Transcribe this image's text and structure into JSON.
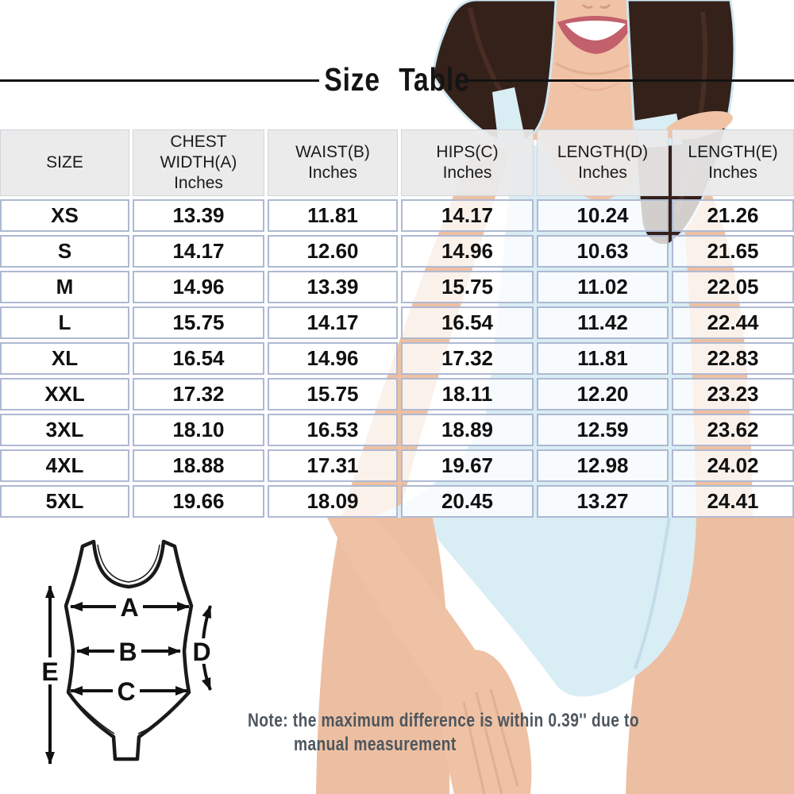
{
  "title": "Size Table",
  "note": {
    "line1": "Note: the maximum difference is within 0.39'' due to",
    "line2": "manual measurement"
  },
  "table": {
    "columns": [
      {
        "key": "size",
        "lines": [
          "SIZE"
        ]
      },
      {
        "key": "chest_width_a",
        "lines": [
          "CHEST",
          "WIDTH(A)",
          "Inches"
        ]
      },
      {
        "key": "waist_b",
        "lines": [
          "WAIST(B)",
          "Inches"
        ]
      },
      {
        "key": "hips_c",
        "lines": [
          "HIPS(C)",
          "Inches"
        ]
      },
      {
        "key": "length_d",
        "lines": [
          "LENGTH(D)",
          "Inches"
        ]
      },
      {
        "key": "length_e",
        "lines": [
          "LENGTH(E)",
          "Inches"
        ]
      }
    ],
    "rows": [
      {
        "size": "XS",
        "values": [
          "13.39",
          "11.81",
          "14.17",
          "10.24",
          "21.26"
        ]
      },
      {
        "size": "S",
        "values": [
          "14.17",
          "12.60",
          "14.96",
          "10.63",
          "21.65"
        ]
      },
      {
        "size": "M",
        "values": [
          "14.96",
          "13.39",
          "15.75",
          "11.02",
          "22.05"
        ]
      },
      {
        "size": "L",
        "values": [
          "15.75",
          "14.17",
          "16.54",
          "11.42",
          "22.44"
        ]
      },
      {
        "size": "XL",
        "values": [
          "16.54",
          "14.96",
          "17.32",
          "11.81",
          "22.83"
        ]
      },
      {
        "size": "XXL",
        "values": [
          "17.32",
          "15.75",
          "18.11",
          "12.20",
          "23.23"
        ]
      },
      {
        "size": "3XL",
        "values": [
          "18.10",
          "16.53",
          "18.89",
          "12.59",
          "23.62"
        ]
      },
      {
        "size": "4XL",
        "values": [
          "18.88",
          "17.31",
          "19.67",
          "12.98",
          "24.02"
        ]
      },
      {
        "size": "5XL",
        "values": [
          "19.66",
          "18.09",
          "20.45",
          "13.27",
          "24.41"
        ]
      }
    ]
  },
  "diagram": {
    "labels": {
      "chest": "A",
      "waist": "B",
      "hips": "C",
      "side_length": "D",
      "full_length": "E"
    }
  },
  "colors": {
    "table_border": "#aeb9d2",
    "header_bg": "#eaeaea",
    "swimsuit_blue": "#d9edf4",
    "skin": "#f1c3a6",
    "hair": "#34211a",
    "note_text": "#4d565e",
    "title_text": "#141414"
  },
  "chart_data": {
    "type": "table",
    "title": "Size Table",
    "units": "Inches",
    "columns": [
      "SIZE",
      "CHEST WIDTH(A) Inches",
      "WAIST(B) Inches",
      "HIPS(C) Inches",
      "LENGTH(D) Inches",
      "LENGTH(E) Inches"
    ],
    "rows": [
      [
        "XS",
        13.39,
        11.81,
        14.17,
        10.24,
        21.26
      ],
      [
        "S",
        14.17,
        12.6,
        14.96,
        10.63,
        21.65
      ],
      [
        "M",
        14.96,
        13.39,
        15.75,
        11.02,
        22.05
      ],
      [
        "L",
        15.75,
        14.17,
        16.54,
        11.42,
        22.44
      ],
      [
        "XL",
        16.54,
        14.96,
        17.32,
        11.81,
        22.83
      ],
      [
        "XXL",
        17.32,
        15.75,
        18.11,
        12.2,
        23.23
      ],
      [
        "3XL",
        18.1,
        16.53,
        18.89,
        12.59,
        23.62
      ],
      [
        "4XL",
        18.88,
        17.31,
        19.67,
        12.98,
        24.02
      ],
      [
        "5XL",
        19.66,
        18.09,
        20.45,
        13.27,
        24.41
      ]
    ],
    "note": "Note: the maximum difference is within 0.39'' due to manual measurement"
  }
}
